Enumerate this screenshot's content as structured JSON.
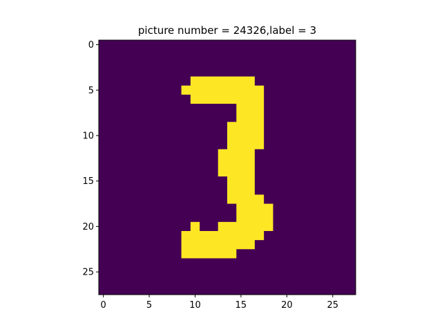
{
  "chart_data": {
    "type": "heatmap",
    "title": "picture number = 24326,label = 3",
    "xlabel": "",
    "ylabel": "",
    "shape": [
      28,
      28
    ],
    "xlim": [
      -0.5,
      27.5
    ],
    "ylim": [
      27.5,
      -0.5
    ],
    "xticks": [
      0,
      5,
      10,
      15,
      20,
      25
    ],
    "yticks": [
      0,
      5,
      10,
      15,
      20,
      25
    ],
    "grid": false,
    "colormap": "viridis",
    "colors": {
      "background": "#440154",
      "foreground": "#fde725"
    },
    "foreground_runs": [
      {
        "row": 4,
        "col_start": 10,
        "col_end": 16
      },
      {
        "row": 5,
        "col_start": 9,
        "col_end": 17
      },
      {
        "row": 6,
        "col_start": 10,
        "col_end": 17
      },
      {
        "row": 7,
        "col_start": 15,
        "col_end": 17
      },
      {
        "row": 8,
        "col_start": 15,
        "col_end": 17
      },
      {
        "row": 9,
        "col_start": 14,
        "col_end": 17
      },
      {
        "row": 10,
        "col_start": 14,
        "col_end": 17
      },
      {
        "row": 11,
        "col_start": 14,
        "col_end": 17
      },
      {
        "row": 12,
        "col_start": 13,
        "col_end": 16
      },
      {
        "row": 13,
        "col_start": 13,
        "col_end": 16
      },
      {
        "row": 14,
        "col_start": 13,
        "col_end": 16
      },
      {
        "row": 15,
        "col_start": 14,
        "col_end": 16
      },
      {
        "row": 16,
        "col_start": 14,
        "col_end": 16
      },
      {
        "row": 17,
        "col_start": 14,
        "col_end": 17
      },
      {
        "row": 18,
        "col_start": 15,
        "col_end": 18
      },
      {
        "row": 19,
        "col_start": 15,
        "col_end": 18
      },
      {
        "row": 20,
        "col_start": 15,
        "col_end": 18
      },
      {
        "row": 20,
        "col_start": 10,
        "col_end": 10
      },
      {
        "row": 20,
        "col_start": 13,
        "col_end": 14
      },
      {
        "row": 21,
        "col_start": 9,
        "col_end": 17
      },
      {
        "row": 22,
        "col_start": 9,
        "col_end": 16
      },
      {
        "row": 23,
        "col_start": 9,
        "col_end": 14
      }
    ]
  }
}
